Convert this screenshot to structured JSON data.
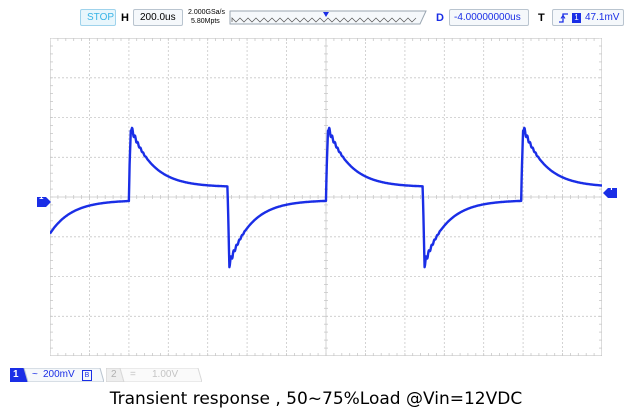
{
  "status_bar": {
    "run_state": "STOP",
    "horizontal_label": "H",
    "timebase": "200.0us",
    "sample_rate": "2.000GSa/s",
    "memory_depth": "5.80Mpts",
    "delay_label": "D",
    "delay_value": "-4.00000000us",
    "trigger_label": "T",
    "trigger_channel": "1",
    "trigger_level": "47.1mV"
  },
  "markers": {
    "trigger_position": "T",
    "channel1": "1",
    "trigger_level": "T"
  },
  "channels": [
    {
      "number": "1",
      "coupling": "~",
      "scale": "200mV",
      "bandwidth_limit": "B",
      "active": true
    },
    {
      "number": "2",
      "coupling": "=",
      "scale": "1.00V",
      "active": false
    }
  ],
  "caption": "Transient response , 50~75%Load @Vin=12VDC",
  "colors": {
    "trace": "#1a2ee6",
    "grid": "#c8c8c8",
    "run_state": "#3ab4e6",
    "label": "#1a2ee6",
    "channel1": "#1a2ee6"
  }
}
